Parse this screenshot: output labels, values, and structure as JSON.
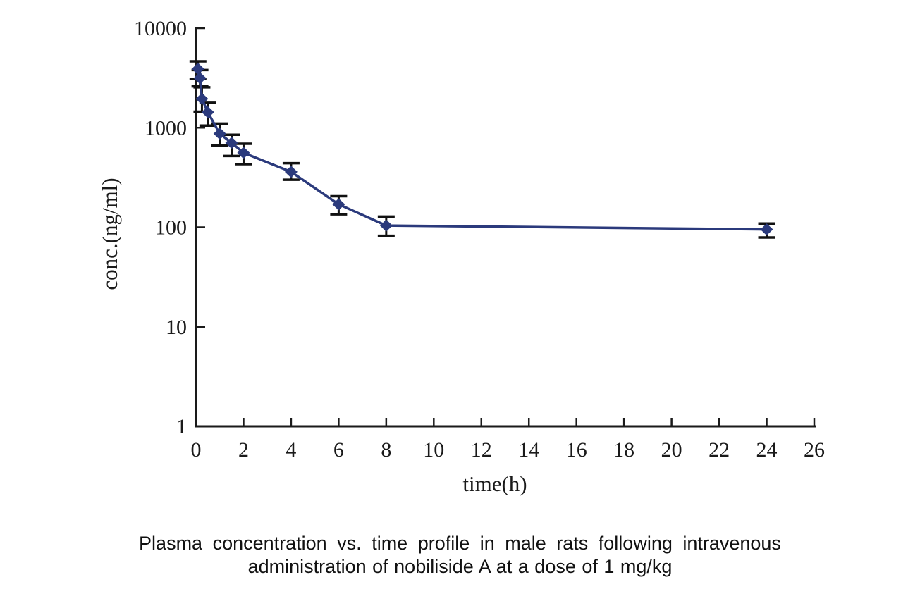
{
  "caption": {
    "line1": "Plasma concentration vs. time profile in male rats following intravenous",
    "line2": "administration of nobiliside A at a dose of 1 mg/kg"
  },
  "chart_data": {
    "type": "line",
    "scale": "semilog-y",
    "xlabel": "time(h)",
    "ylabel": "conc.(ng/ml)",
    "xlim": [
      0,
      26
    ],
    "ylim": [
      1,
      10000
    ],
    "x_ticks": [
      0,
      2,
      4,
      6,
      8,
      10,
      12,
      14,
      16,
      18,
      20,
      22,
      24,
      26
    ],
    "y_ticks": [
      10000,
      1000,
      100,
      10,
      1
    ],
    "grid": false,
    "legend": "none",
    "marker": "diamond",
    "line_color": "#2b3a7c",
    "error_bar_color": "#111111",
    "axis_color": "#1a1a1a",
    "points": [
      {
        "t": 0.083,
        "conc": 3900,
        "lo": 3100,
        "hi": 4650
      },
      {
        "t": 0.167,
        "conc": 3150,
        "lo": 2600,
        "hi": 3800
      },
      {
        "t": 0.25,
        "conc": 1950,
        "lo": 1450,
        "hi": 2550
      },
      {
        "t": 0.5,
        "conc": 1430,
        "lo": 1050,
        "hi": 1780
      },
      {
        "t": 1,
        "conc": 870,
        "lo": 660,
        "hi": 1100
      },
      {
        "t": 1.5,
        "conc": 705,
        "lo": 520,
        "hi": 850
      },
      {
        "t": 2,
        "conc": 560,
        "lo": 430,
        "hi": 690
      },
      {
        "t": 4,
        "conc": 360,
        "lo": 300,
        "hi": 440
      },
      {
        "t": 6,
        "conc": 170,
        "lo": 135,
        "hi": 205
      },
      {
        "t": 8,
        "conc": 104,
        "lo": 82,
        "hi": 128
      },
      {
        "t": 24,
        "conc": 95,
        "lo": 79,
        "hi": 109
      }
    ]
  }
}
